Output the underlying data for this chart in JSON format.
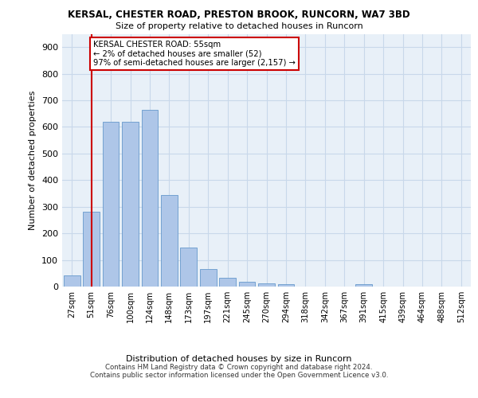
{
  "title1": "KERSAL, CHESTER ROAD, PRESTON BROOK, RUNCORN, WA7 3BD",
  "title2": "Size of property relative to detached houses in Runcorn",
  "xlabel": "Distribution of detached houses by size in Runcorn",
  "ylabel": "Number of detached properties",
  "categories": [
    "27sqm",
    "51sqm",
    "76sqm",
    "100sqm",
    "124sqm",
    "148sqm",
    "173sqm",
    "197sqm",
    "221sqm",
    "245sqm",
    "270sqm",
    "294sqm",
    "318sqm",
    "342sqm",
    "367sqm",
    "391sqm",
    "415sqm",
    "439sqm",
    "464sqm",
    "488sqm",
    "512sqm"
  ],
  "values": [
    42,
    280,
    620,
    620,
    665,
    345,
    148,
    65,
    32,
    17,
    12,
    10,
    0,
    0,
    0,
    10,
    0,
    0,
    0,
    0,
    0
  ],
  "bar_color": "#aec6e8",
  "bar_edgecolor": "#6699cc",
  "highlight_bar_index": 1,
  "highlight_line_color": "#cc0000",
  "annotation_text": "KERSAL CHESTER ROAD: 55sqm\n← 2% of detached houses are smaller (52)\n97% of semi-detached houses are larger (2,157) →",
  "annotation_box_edgecolor": "#cc0000",
  "ylim": [
    0,
    950
  ],
  "yticks": [
    0,
    100,
    200,
    300,
    400,
    500,
    600,
    700,
    800,
    900
  ],
  "grid_color": "#c8d8ea",
  "background_color": "#e8f0f8",
  "footer1": "Contains HM Land Registry data © Crown copyright and database right 2024.",
  "footer2": "Contains public sector information licensed under the Open Government Licence v3.0."
}
